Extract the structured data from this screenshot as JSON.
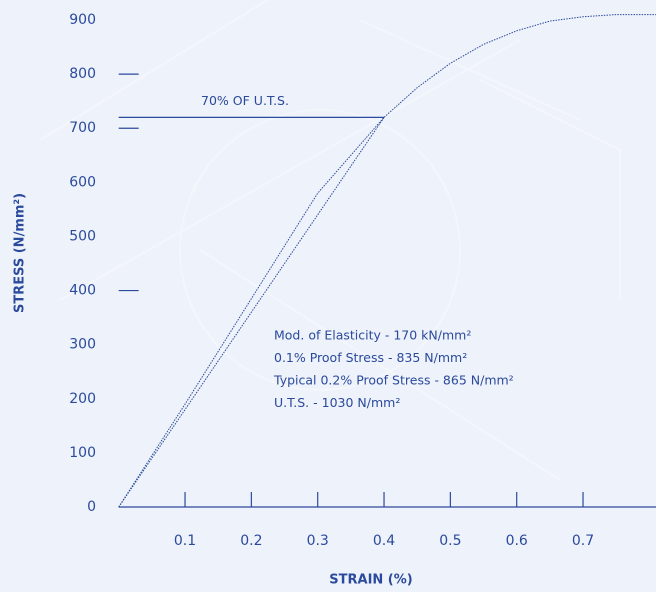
{
  "chart_data": {
    "type": "line",
    "xlabel": "STRAIN (%)",
    "ylabel": "STRESS (N/mm²)",
    "xlim": [
      0,
      0.81
    ],
    "ylim": [
      0,
      900
    ],
    "xticks": [
      0.1,
      0.2,
      0.3,
      0.4,
      0.5,
      0.6,
      0.7
    ],
    "yticks": [
      0,
      100,
      200,
      300,
      400,
      500,
      600,
      700,
      800,
      900
    ],
    "ytick_marks": [
      400,
      700,
      800
    ],
    "color": "#2b4a9c",
    "series": [
      {
        "color": "#2b4a9c",
        "x": [
          0,
          0.1,
          0.2,
          0.3,
          0.4,
          0.45,
          0.5,
          0.55,
          0.6,
          0.65,
          0.7,
          0.75,
          0.81
        ],
        "values": [
          0,
          190,
          385,
          580,
          720,
          775,
          820,
          855,
          880,
          898,
          906,
          910,
          910
        ]
      },
      {
        "color": "#2b4a9c",
        "x": [
          0,
          0.4
        ],
        "values": [
          0,
          720
        ]
      }
    ],
    "hline": {
      "value": 720,
      "xmax": 0.4,
      "label": "70% OF U.T.S."
    },
    "annotations": [
      "Mod. of Elasticity - 170 kN/mm²",
      "0.1% Proof Stress - 835 N/mm²",
      "Typical 0.2% Proof Stress - 865 N/mm²",
      "U.T.S. - 1030 N/mm²"
    ]
  }
}
